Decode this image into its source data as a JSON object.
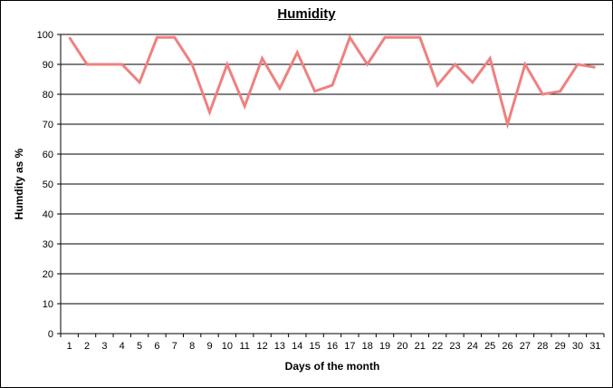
{
  "chart_data": {
    "type": "line",
    "title": "Humidity",
    "xlabel": "Days of the month",
    "ylabel": "Humdity as %",
    "categories": [
      "1",
      "2",
      "3",
      "4",
      "5",
      "6",
      "7",
      "8",
      "9",
      "10",
      "11",
      "12",
      "13",
      "14",
      "15",
      "16",
      "17",
      "18",
      "19",
      "20",
      "21",
      "22",
      "23",
      "24",
      "25",
      "26",
      "27",
      "28",
      "29",
      "30",
      "31"
    ],
    "series": [
      {
        "values": [
          99,
          90,
          90,
          90,
          84,
          99,
          99,
          90,
          74,
          90,
          76,
          92,
          82,
          94,
          81,
          83,
          99,
          90,
          99,
          99,
          99,
          83,
          90,
          84,
          92,
          70,
          90,
          80,
          81,
          90,
          89
        ],
        "color": "#f08080"
      }
    ],
    "ylim": [
      0,
      100
    ],
    "yticks": [
      0,
      10,
      20,
      30,
      40,
      50,
      60,
      70,
      80,
      90,
      100
    ],
    "grid": true,
    "legend": "none"
  }
}
